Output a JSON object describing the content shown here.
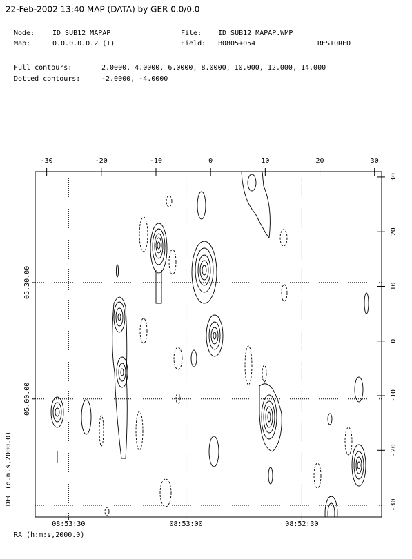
{
  "chart_data": {
    "type": "contour",
    "title": "22-Feb-2002 13:40 MAP (DATA) by GER 0.0/0.0",
    "info": [
      {
        "label": "Node:",
        "value": "ID_SUB12_MAPAP"
      },
      {
        "label": "Map:",
        "value": "0.0.0.0.0.2 (I)"
      },
      {
        "label": "File:",
        "value": "ID_SUB12_MAPAP.WMP"
      },
      {
        "label": "Field:",
        "value": "B0805+054"
      }
    ],
    "status": "RESTORED",
    "full_contours_label": "Full contours:",
    "full_contours": "2.0000, 4.0000, 6.0000, 8.0000, 10.000, 12.000, 14.000",
    "dotted_contours_label": "Dotted contours:",
    "dotted_contours": "-2.0000, -4.0000",
    "xlabel": "RA (h:m:s,2000.0)",
    "ylabel": "DEC (d.m.s,2000.0)",
    "xlim": [
      -32.1,
      31.3
    ],
    "ylim": [
      -32.2,
      31.0
    ],
    "xticks": [
      -30,
      -20,
      -10,
      0,
      10,
      20,
      30
    ],
    "yticks": [
      30,
      20,
      10,
      0,
      -10,
      -20,
      -30
    ],
    "ra_ticks": [
      {
        "value": -26,
        "label": "08:53:30"
      },
      {
        "value": -4.5,
        "label": "08:53:00"
      },
      {
        "value": 16.7,
        "label": "08:52:30"
      }
    ],
    "dec_ticks": [
      {
        "value": 10.7,
        "label": "05.30.00"
      },
      {
        "value": -10.6,
        "label": "05.00.00"
      }
    ]
  }
}
